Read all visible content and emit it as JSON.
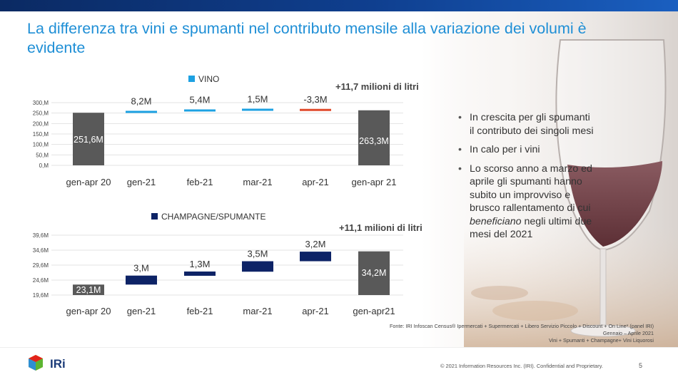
{
  "title": "La differenza tra vini e spumanti nel contributo mensile alla variazione dei volumi è evidente",
  "chart_data": [
    {
      "type": "bar",
      "legend": "VINO",
      "total_label": "+11,7 milioni di litri",
      "categories": [
        "gen-apr 20",
        "gen-21",
        "feb-21",
        "mar-21",
        "apr-21",
        "gen-apr 21"
      ],
      "values": [
        251.6,
        8.2,
        5.4,
        1.5,
        -3.3,
        263.3
      ],
      "value_labels": [
        "251,6M",
        "8,2M",
        "5,4M",
        "1,5M",
        "-3,3M",
        "263,3M"
      ],
      "yticks": [
        "300,M",
        "250,M",
        "200,M",
        "150,M",
        "100,M",
        "50,M",
        "0,M"
      ],
      "ylim": [
        0,
        300
      ],
      "colors": {
        "total": "#595959",
        "positive": "#1da1e2",
        "negative": "#e04a2b"
      }
    },
    {
      "type": "bar",
      "legend": "CHAMPAGNE/SPUMANTE",
      "total_label": "+11,1 milioni di litri",
      "categories": [
        "gen-apr 20",
        "gen-21",
        "feb-21",
        "mar-21",
        "apr-21",
        "gen-apr21"
      ],
      "values": [
        23.1,
        3.0,
        1.3,
        3.5,
        3.2,
        34.2
      ],
      "value_labels": [
        "23,1M",
        "3,M",
        "1,3M",
        "3,5M",
        "3,2M",
        "34,2M"
      ],
      "yticks": [
        "39,6M",
        "34,6M",
        "29,6M",
        "24,6M",
        "19,6M"
      ],
      "ylim": [
        19.6,
        39.6
      ],
      "colors": {
        "total": "#595959",
        "positive": "#0d2366"
      }
    }
  ],
  "bullets": [
    "In crescita per gli spumanti il contributo dei singoli mesi",
    "In calo per i vini"
  ],
  "bullet3": {
    "before": "Lo scorso anno a marzo ed aprile gli spumanti hanno subito un improvviso e brusco rallentamento di cui ",
    "emph": "beneficiano",
    "after": " negli ultimi due mesi del 2021"
  },
  "source": {
    "line1": "Fonte: IRI Infoscan Census® Ipermercati + Supermercati + Libero Servizio Piccolo + Discount + On Line* (panel IRI)",
    "line2": "Gennaio – Aprile 2021",
    "line3": "Vini + Spumanti + Champagne+ Vini Liquorosi"
  },
  "footer": {
    "copyright": "© 2021 Information Resources Inc. (IRI). Confidential and Proprietary.",
    "page": "5",
    "logo": "IRi"
  }
}
